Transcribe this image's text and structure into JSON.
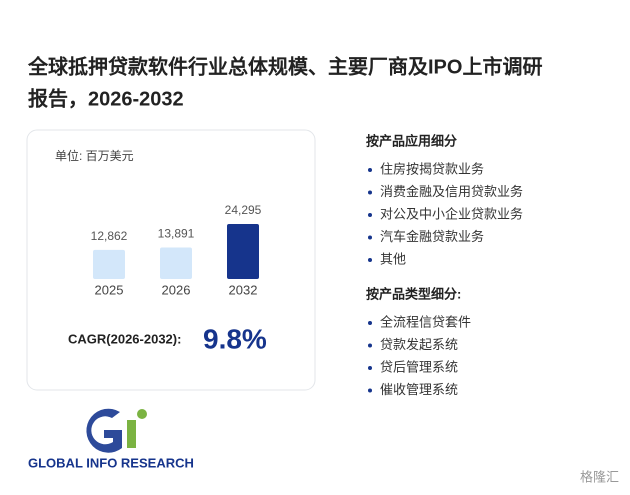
{
  "header": {
    "title_line1": "全球抵押贷款软件行业总体规模、主要厂商及IPO上市调研",
    "title_line2": "报告，2026-2032"
  },
  "chart_data": {
    "type": "bar",
    "unit": "单位: 百万美元",
    "categories": [
      "2025",
      "2026",
      "2032"
    ],
    "values": [
      12862,
      13891,
      24295
    ],
    "value_labels": [
      "12,862",
      "13,891",
      "24,295"
    ],
    "colors": [
      "#d3e7fa",
      "#d3e7fa",
      "#16348c"
    ],
    "cagr_label": "CAGR(2026-2032):",
    "cagr_value": "9.8%"
  },
  "segments": {
    "by_application": {
      "title": "按产品应用细分",
      "items": [
        "住房按揭贷款业务",
        "消费金融及信用贷款业务",
        "对公及中小企业贷款业务",
        "汽车金融贷款业务",
        "其他"
      ]
    },
    "by_type": {
      "title": "按产品类型细分:",
      "items": [
        "全流程信贷套件",
        "贷款发起系统",
        "贷后管理系统",
        "催收管理系统"
      ]
    }
  },
  "logo": {
    "text": "GLOBAL INFO RESEARCH"
  },
  "source_mark": "格隆汇"
}
